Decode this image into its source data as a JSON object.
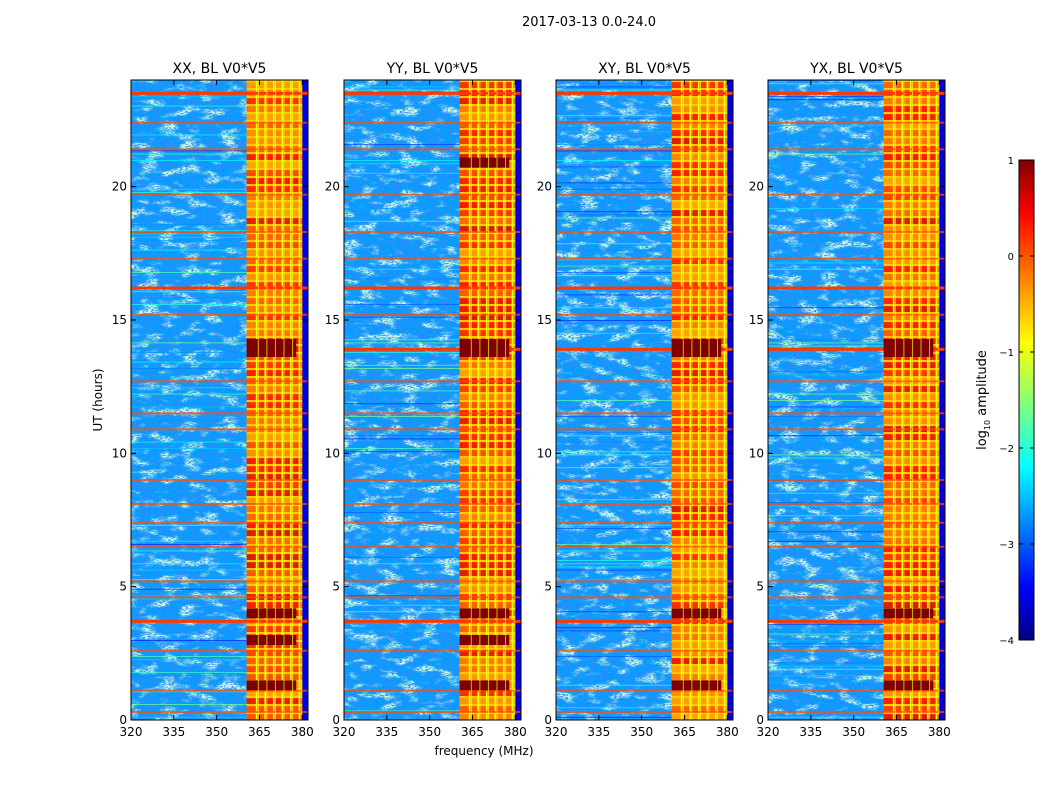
{
  "suptitle": "2017-03-13 0.0-24.0",
  "colors": {
    "background": "#ffffff",
    "axis": "#000000",
    "bright_band": "#ff8c00",
    "saturated": "#7f0000"
  },
  "colorbar": {
    "label_prefix": "log",
    "label_sub": "10",
    "label_suffix": " amplitude",
    "min": -4,
    "max": 1,
    "colormap": "jet",
    "ticks": [
      "1",
      "0",
      "−1",
      "−2",
      "−3",
      "−4"
    ],
    "tick_values": [
      1,
      0,
      -1,
      -2,
      -3,
      -4
    ]
  },
  "chart_data": [
    {
      "type": "heatmap",
      "title": "XX, BL V0*V5",
      "xlabel": "",
      "ylabel": "UT (hours)",
      "xlim": [
        320,
        382
      ],
      "ylim": [
        0,
        24
      ],
      "xticks": [
        320,
        335,
        350,
        365,
        380
      ],
      "yticks": [
        0,
        5,
        10,
        15,
        20
      ],
      "bright_band_mhz": [
        360.5,
        380
      ],
      "bright_channels_mhz": [
        364,
        367,
        370,
        373,
        376,
        379
      ],
      "strong_rfi_hours": [
        1.3,
        3.0,
        4.0,
        13.8,
        14.1
      ],
      "rfi_lines_hours": [
        0.3,
        1.1,
        2.6,
        3.7,
        4.6,
        5.2,
        6.5,
        7.4,
        8.1,
        9.0,
        10.9,
        11.5,
        12.7,
        15.2,
        16.2,
        17.3,
        18.3,
        19.7,
        21.4,
        22.4,
        23.5
      ],
      "cross_band_rfi_hours": [
        3.7,
        16.2,
        23.5
      ]
    },
    {
      "type": "heatmap",
      "title": "YY, BL V0*V5",
      "xlabel": "frequency (MHz)",
      "ylabel": "",
      "xlim": [
        320,
        382
      ],
      "ylim": [
        0,
        24
      ],
      "xticks": [
        320,
        335,
        350,
        365,
        380
      ],
      "yticks": [
        0,
        5,
        10,
        15,
        20
      ],
      "bright_band_mhz": [
        360.5,
        380
      ],
      "bright_channels_mhz": [
        364,
        367,
        370,
        373,
        376,
        379
      ],
      "strong_rfi_hours": [
        1.3,
        3.0,
        4.0,
        13.8,
        14.1,
        20.9
      ],
      "rfi_lines_hours": [
        0.3,
        1.1,
        2.6,
        3.7,
        4.6,
        5.2,
        6.5,
        7.4,
        8.1,
        9.0,
        10.9,
        11.5,
        12.7,
        15.2,
        16.2,
        17.3,
        18.3,
        19.7,
        21.4,
        22.4,
        23.5
      ],
      "cross_band_rfi_hours": [
        3.7,
        13.9,
        16.2,
        23.5
      ]
    },
    {
      "type": "heatmap",
      "title": "XY, BL V0*V5",
      "xlabel": "",
      "ylabel": "",
      "xlim": [
        320,
        382
      ],
      "ylim": [
        0,
        24
      ],
      "xticks": [
        320,
        335,
        350,
        365,
        380
      ],
      "yticks": [
        0,
        5,
        10,
        15,
        20
      ],
      "bright_band_mhz": [
        360.5,
        380
      ],
      "bright_channels_mhz": [
        364,
        367,
        370,
        373,
        376,
        379
      ],
      "strong_rfi_hours": [
        1.3,
        4.0,
        13.8,
        14.1
      ],
      "rfi_lines_hours": [
        0.3,
        1.1,
        2.6,
        3.7,
        4.6,
        5.2,
        6.5,
        7.4,
        8.1,
        9.0,
        10.9,
        11.5,
        12.7,
        15.2,
        16.2,
        17.3,
        18.3,
        19.7,
        21.4,
        22.4,
        23.5
      ],
      "cross_band_rfi_hours": [
        3.7,
        13.9,
        16.2,
        23.5
      ]
    },
    {
      "type": "heatmap",
      "title": "YX, BL V0*V5",
      "xlabel": "",
      "ylabel": "",
      "xlim": [
        320,
        382
      ],
      "ylim": [
        0,
        24
      ],
      "xticks": [
        320,
        335,
        350,
        365,
        380
      ],
      "yticks": [
        0,
        5,
        10,
        15,
        20
      ],
      "bright_band_mhz": [
        360.5,
        380
      ],
      "bright_channels_mhz": [
        364,
        367,
        370,
        373,
        376,
        379
      ],
      "strong_rfi_hours": [
        1.3,
        4.0,
        13.8,
        14.1
      ],
      "rfi_lines_hours": [
        0.3,
        1.1,
        2.6,
        3.7,
        4.6,
        5.2,
        6.5,
        7.4,
        8.1,
        9.0,
        10.9,
        11.5,
        12.7,
        15.2,
        16.2,
        17.3,
        18.3,
        19.7,
        21.4,
        22.4,
        23.5
      ],
      "cross_band_rfi_hours": [
        3.7,
        13.9,
        16.2,
        23.5
      ]
    }
  ]
}
